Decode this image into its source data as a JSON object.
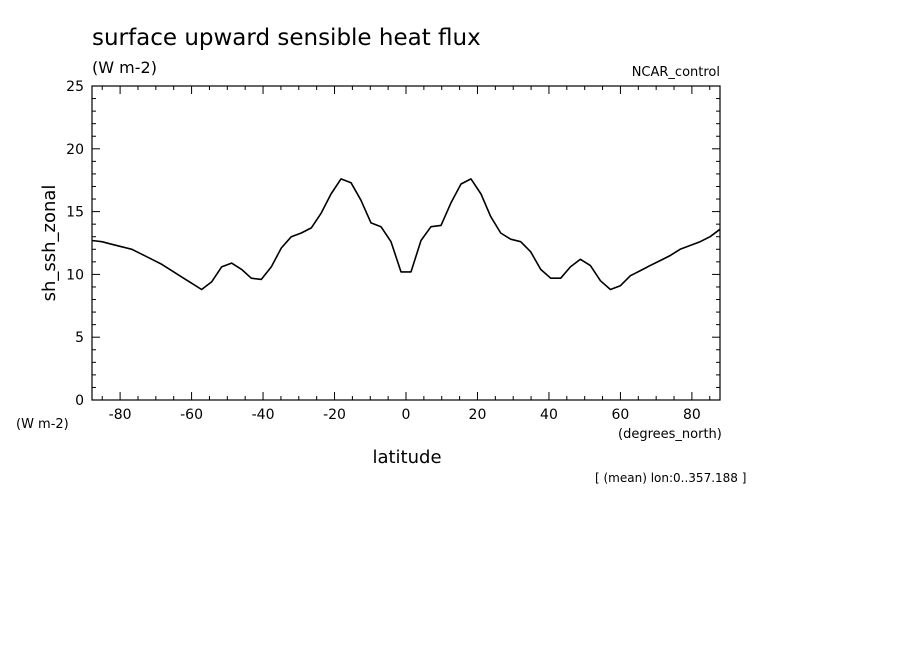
{
  "chart_data": {
    "type": "line",
    "title": "surface upward sensible heat flux",
    "units": "(W m-2)",
    "experiment": "NCAR_control",
    "ylabel": "sh_ssh_zonal",
    "y_units": "(W m-2)",
    "xlabel": "latitude",
    "x_units": "(degrees_north)",
    "note": "[ (mean) lon:0..357.188 ]",
    "xlim": [
      -87.8638,
      87.8638
    ],
    "ylim": [
      0,
      25
    ],
    "x_ticks": [
      -80,
      -60,
      -40,
      -20,
      0,
      20,
      40,
      60,
      80
    ],
    "x_tick_labels": [
      "-80",
      "-60",
      "-40",
      "-20",
      "0",
      "20",
      "40",
      "60",
      "80"
    ],
    "y_ticks": [
      0,
      5,
      10,
      15,
      20,
      25
    ],
    "y_tick_labels": [
      "0",
      "5",
      "10",
      "15",
      "20",
      "25"
    ],
    "grid": false,
    "series": [
      {
        "color": "#000000",
        "x": [
          -87.9,
          -85.1,
          -82.3,
          -79.5,
          -76.7,
          -73.9,
          -71.1,
          -68.3,
          -65.6,
          -62.8,
          -60.0,
          -57.2,
          -54.4,
          -51.6,
          -48.8,
          -46.0,
          -43.3,
          -40.5,
          -37.7,
          -34.9,
          -32.1,
          -29.3,
          -26.5,
          -23.7,
          -21.0,
          -18.2,
          -15.4,
          -12.6,
          -9.8,
          -7.0,
          -4.2,
          -1.4,
          1.4,
          4.2,
          7.0,
          9.8,
          12.6,
          15.4,
          18.2,
          21.0,
          23.7,
          26.5,
          29.3,
          32.1,
          34.9,
          37.7,
          40.5,
          43.3,
          46.0,
          48.8,
          51.6,
          54.4,
          57.2,
          60.0,
          62.8,
          65.6,
          68.3,
          71.1,
          73.9,
          76.7,
          79.5,
          82.3,
          85.1,
          87.9
        ],
        "y": [
          12.7,
          12.6,
          12.4,
          12.2,
          12.0,
          11.6,
          11.2,
          10.8,
          10.3,
          9.8,
          9.3,
          8.8,
          9.4,
          10.6,
          10.9,
          10.4,
          9.7,
          9.6,
          10.6,
          12.1,
          13.0,
          13.3,
          13.7,
          14.9,
          16.4,
          17.6,
          17.3,
          15.9,
          14.1,
          13.8,
          12.6,
          10.2,
          10.2,
          12.7,
          13.8,
          13.9,
          15.7,
          17.2,
          17.6,
          16.4,
          14.6,
          13.3,
          12.8,
          12.6,
          11.8,
          10.4,
          9.7,
          9.7,
          10.6,
          11.2,
          10.7,
          9.5,
          8.8,
          9.1,
          9.9,
          10.3,
          10.7,
          11.1,
          11.5,
          12.0,
          12.3,
          12.6,
          13.0,
          13.6
        ]
      }
    ]
  }
}
